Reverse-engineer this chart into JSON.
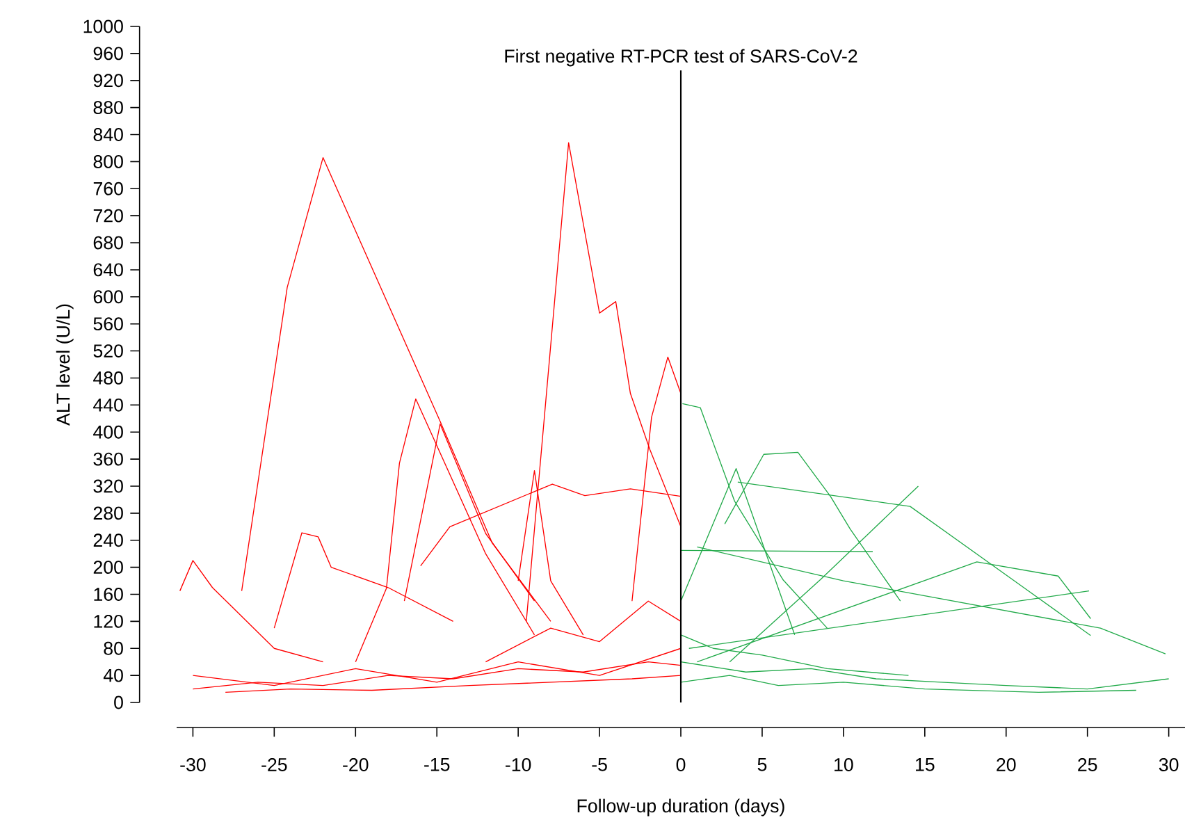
{
  "chart_data": {
    "type": "line",
    "xlabel": "Follow-up duration (days)",
    "ylabel": "ALT level (U/L)",
    "xlim": [
      -31,
      31
    ],
    "ylim": [
      0,
      1000
    ],
    "xticks": [
      -30,
      -25,
      -20,
      -15,
      -10,
      -5,
      0,
      5,
      10,
      15,
      20,
      25,
      30
    ],
    "yticks": [
      0,
      40,
      80,
      120,
      160,
      200,
      240,
      280,
      320,
      360,
      400,
      440,
      480,
      520,
      560,
      600,
      640,
      680,
      720,
      760,
      800,
      840,
      880,
      920,
      960,
      1000
    ],
    "ref_lines": [
      {
        "axis": "x",
        "value": 0,
        "label": "First negative RT-PCR test of SARS-CoV-2",
        "color": "#000000"
      }
    ],
    "series": [
      {
        "color": "#ff0000",
        "x": [
          -27,
          -24.2,
          -22,
          -14.8,
          -11.6,
          -8
        ],
        "values": [
          165,
          614,
          806,
          416,
          236,
          120
        ]
      },
      {
        "color": "#ff0000",
        "x": [
          -9.5,
          -6.9,
          -5,
          -4,
          -3.1,
          -1.9,
          0
        ],
        "values": [
          120,
          828,
          576,
          593,
          457,
          374,
          260
        ]
      },
      {
        "color": "#ff0000",
        "x": [
          -3,
          -1.8,
          -0.8,
          0
        ],
        "values": [
          150,
          422,
          511,
          457
        ]
      },
      {
        "color": "#ff0000",
        "x": [
          -20,
          -18.1,
          -17.3,
          -16.3,
          -12,
          -9
        ],
        "values": [
          60,
          169,
          354,
          449,
          220,
          100
        ]
      },
      {
        "color": "#ff0000",
        "x": [
          -17,
          -14.8,
          -12,
          -9
        ],
        "values": [
          150,
          412,
          250,
          150
        ]
      },
      {
        "color": "#ff0000",
        "x": [
          -30.8,
          -30,
          -28.8,
          -25,
          -22
        ],
        "values": [
          165,
          210,
          170,
          80,
          60
        ]
      },
      {
        "color": "#ff0000",
        "x": [
          -25,
          -23.3,
          -22.3,
          -21.5,
          -18,
          -14
        ],
        "values": [
          110,
          251,
          245,
          200,
          170,
          120
        ]
      },
      {
        "color": "#ff0000",
        "x": [
          -16,
          -14.2,
          -7.9,
          -5.9,
          -3.1,
          0
        ],
        "values": [
          202,
          260,
          323,
          306,
          316,
          305
        ]
      },
      {
        "color": "#ff0000",
        "x": [
          -10,
          -9,
          -8,
          -6
        ],
        "values": [
          180,
          343,
          180,
          100
        ]
      },
      {
        "color": "#ff0000",
        "x": [
          -30,
          -26,
          -22,
          -18,
          -14,
          -10,
          -6,
          -2,
          0
        ],
        "values": [
          20,
          30,
          25,
          40,
          35,
          50,
          45,
          60,
          55
        ]
      },
      {
        "color": "#ff0000",
        "x": [
          -30,
          -25,
          -20,
          -15,
          -10,
          -5,
          0
        ],
        "values": [
          40,
          25,
          50,
          30,
          60,
          40,
          80
        ]
      },
      {
        "color": "#ff0000",
        "x": [
          -28,
          -24,
          -19,
          -13,
          -8,
          -3,
          0
        ],
        "values": [
          15,
          20,
          18,
          25,
          30,
          35,
          40
        ]
      },
      {
        "color": "#ff0000",
        "x": [
          -12,
          -8,
          -5,
          -2,
          0
        ],
        "values": [
          60,
          110,
          90,
          150,
          120
        ]
      },
      {
        "color": "#22aa4a",
        "x": [
          0.1,
          1.2,
          3.3,
          6.3,
          9
        ],
        "values": [
          442,
          436,
          298,
          181,
          110
        ]
      },
      {
        "color": "#22aa4a",
        "x": [
          2.7,
          5.1,
          7.2,
          9.2,
          10.4,
          13.5
        ],
        "values": [
          264,
          367,
          370,
          305,
          257,
          150
        ]
      },
      {
        "color": "#22aa4a",
        "x": [
          3,
          8.6,
          14.6
        ],
        "values": [
          60,
          182,
          320
        ]
      },
      {
        "color": "#22aa4a",
        "x": [
          3.5,
          14.1,
          21.2,
          25.2
        ],
        "values": [
          326,
          290,
          168,
          99
        ]
      },
      {
        "color": "#22aa4a",
        "x": [
          1,
          18.2,
          23.2,
          25.2
        ],
        "values": [
          60,
          208,
          187,
          124
        ]
      },
      {
        "color": "#22aa4a",
        "x": [
          1,
          10,
          25.8,
          29.8
        ],
        "values": [
          230,
          180,
          110,
          72
        ]
      },
      {
        "color": "#22aa4a",
        "x": [
          0.5,
          25.1
        ],
        "values": [
          80,
          165
        ]
      },
      {
        "color": "#22aa4a",
        "x": [
          0,
          11.8
        ],
        "values": [
          225,
          223
        ]
      },
      {
        "color": "#22aa4a",
        "x": [
          0,
          3.4,
          7
        ],
        "values": [
          150,
          346,
          100
        ]
      },
      {
        "color": "#22aa4a",
        "x": [
          0,
          4,
          8,
          12,
          16,
          20,
          25,
          30
        ],
        "values": [
          60,
          45,
          50,
          35,
          30,
          25,
          20,
          35
        ]
      },
      {
        "color": "#22aa4a",
        "x": [
          0,
          3,
          6,
          10,
          15,
          22,
          28
        ],
        "values": [
          30,
          40,
          25,
          30,
          20,
          15,
          18
        ]
      },
      {
        "color": "#22aa4a",
        "x": [
          0,
          2,
          5,
          9,
          14
        ],
        "values": [
          100,
          80,
          70,
          50,
          40
        ]
      }
    ]
  }
}
